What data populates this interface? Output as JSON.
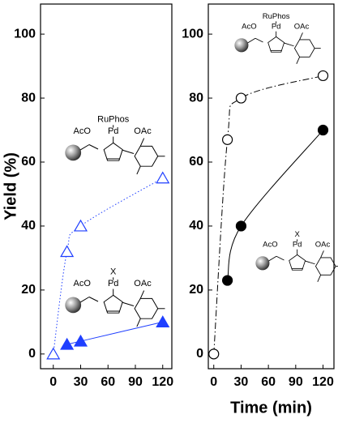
{
  "chart_data": [
    {
      "type": "scatter",
      "ylabel": "Yield (%)",
      "xlim": [
        -14,
        130
      ],
      "ylim": [
        -4.6,
        109.4
      ],
      "xticks": [
        0,
        30,
        60,
        90,
        120
      ],
      "yticks": [
        0,
        20,
        40,
        60,
        80,
        100
      ],
      "annotations": [
        "RuPhos",
        "AcO",
        "Pd",
        "OAc",
        "X",
        "AcO",
        "Pd",
        "OAc"
      ],
      "series": [
        {
          "color": "#1f3fff",
          "marker": "triangle",
          "filled": false,
          "linestyle": "dotted",
          "x": [
            0,
            15,
            30,
            120
          ],
          "values": [
            0,
            32,
            40,
            55
          ]
        },
        {
          "color": "#1f3fff",
          "marker": "triangle",
          "filled": true,
          "linestyle": "solid",
          "x": [
            15,
            30,
            120
          ],
          "values": [
            3,
            4,
            10
          ]
        }
      ]
    },
    {
      "type": "scatter",
      "xlabel": "Time (min)",
      "xlim": [
        -6,
        132
      ],
      "ylim": [
        -4.6,
        109.4
      ],
      "xticks": [
        0,
        30,
        60,
        90,
        120
      ],
      "yticks": [
        0,
        20,
        40,
        60,
        80,
        100
      ],
      "annotations": [
        "RuPhos",
        "AcO",
        "Pd",
        "OAc",
        "X",
        "AcO",
        "Pd",
        "OAc"
      ],
      "series": [
        {
          "color": "#000000",
          "marker": "circle",
          "filled": false,
          "linestyle": "dashdot",
          "x": [
            0,
            15,
            30,
            120
          ],
          "values": [
            0,
            67,
            80,
            87
          ]
        },
        {
          "color": "#000000",
          "marker": "circle",
          "filled": true,
          "linestyle": "solid",
          "x": [
            15,
            30,
            120
          ],
          "values": [
            23,
            40,
            70
          ]
        }
      ]
    }
  ]
}
